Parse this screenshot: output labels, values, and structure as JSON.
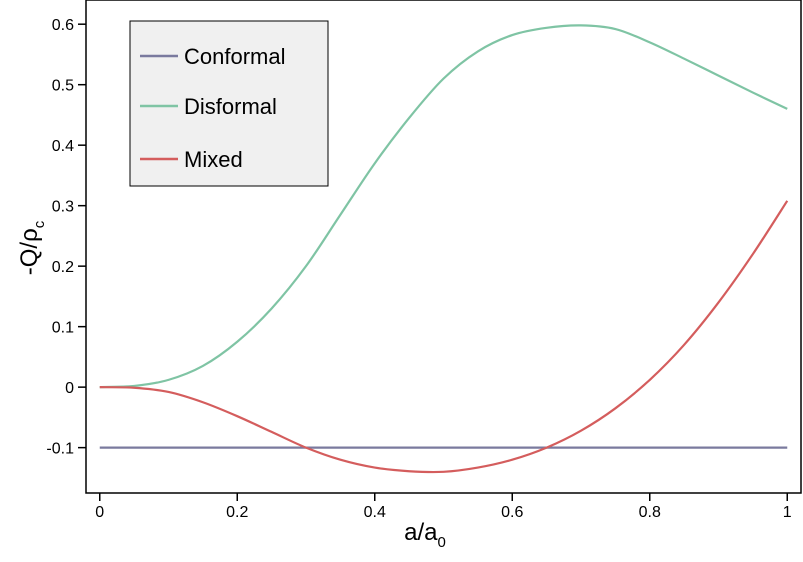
{
  "chart_data": {
    "type": "line",
    "title": "",
    "xlabel": {
      "main": "a/a",
      "sub": "0"
    },
    "ylabel": {
      "main": "-Q/ρ",
      "sub": "c"
    },
    "xlim": [
      -0.02,
      1.02
    ],
    "ylim": [
      -0.175,
      0.64
    ],
    "xticks": [
      0,
      0.2,
      0.4,
      0.6,
      0.8,
      1
    ],
    "xtick_labels": [
      "0",
      "0.2",
      "0.4",
      "0.6",
      "0.8",
      "1"
    ],
    "yticks": [
      -0.1,
      0,
      0.1,
      0.2,
      0.3,
      0.4,
      0.5,
      0.6
    ],
    "ytick_labels": [
      "-0.1",
      "0",
      "0.1",
      "0.2",
      "0.3",
      "0.4",
      "0.5",
      "0.6"
    ],
    "grid": false,
    "legend": {
      "position": "top-left"
    },
    "x": [
      0,
      0.05,
      0.1,
      0.15,
      0.2,
      0.25,
      0.3,
      0.35,
      0.4,
      0.45,
      0.5,
      0.55,
      0.6,
      0.65,
      0.7,
      0.75,
      0.8,
      0.85,
      0.9,
      0.95,
      1.0
    ],
    "series": [
      {
        "name": "Conformal",
        "color": "#7a7a9e",
        "values": [
          -0.1,
          -0.1,
          -0.1,
          -0.1,
          -0.1,
          -0.1,
          -0.1,
          -0.1,
          -0.1,
          -0.1,
          -0.1,
          -0.1,
          -0.1,
          -0.1,
          -0.1,
          -0.1,
          -0.1,
          -0.1,
          -0.1,
          -0.1,
          -0.1
        ]
      },
      {
        "name": "Disformal",
        "color": "#7fc4a4",
        "values": [
          0,
          0.002,
          0.012,
          0.035,
          0.075,
          0.13,
          0.2,
          0.285,
          0.37,
          0.445,
          0.51,
          0.555,
          0.582,
          0.594,
          0.598,
          0.592,
          0.57,
          0.543,
          0.515,
          0.487,
          0.46
        ]
      },
      {
        "name": "Mixed",
        "color": "#d45d5d",
        "values": [
          0,
          -0.001,
          -0.008,
          -0.025,
          -0.048,
          -0.074,
          -0.1,
          -0.12,
          -0.133,
          -0.139,
          -0.14,
          -0.133,
          -0.12,
          -0.1,
          -0.072,
          -0.035,
          0.012,
          0.07,
          0.14,
          0.22,
          0.308
        ]
      }
    ]
  }
}
